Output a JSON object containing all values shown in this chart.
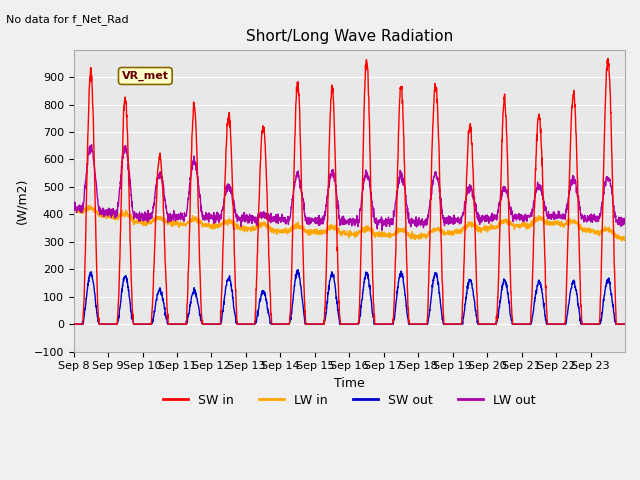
{
  "title": "Short/Long Wave Radiation",
  "subtitle": "No data for f_Net_Rad",
  "xlabel": "Time",
  "ylabel": "(W/m2)",
  "ylim": [
    -100,
    1000
  ],
  "yticks": [
    -100,
    0,
    100,
    200,
    300,
    400,
    500,
    600,
    700,
    800,
    900
  ],
  "x_tick_labels": [
    "Sep 8",
    "Sep 9",
    "Sep 10",
    "Sep 11",
    "Sep 12",
    "Sep 13",
    "Sep 14",
    "Sep 15",
    "Sep 16",
    "Sep 17",
    "Sep 18",
    "Sep 19",
    "Sep 20",
    "Sep 21",
    "Sep 22",
    "Sep 23"
  ],
  "colors": {
    "SW_in": "#ff0000",
    "LW_in": "#ffa500",
    "SW_out": "#0000cc",
    "LW_out": "#aa00aa"
  },
  "bg_color": "#e8e8e8",
  "legend_label_SW_in": "SW in",
  "legend_label_LW_in": "LW in",
  "legend_label_SW_out": "SW out",
  "legend_label_LW_out": "LW out",
  "station_label": "VR_met",
  "n_days": 16,
  "points_per_day": 144
}
